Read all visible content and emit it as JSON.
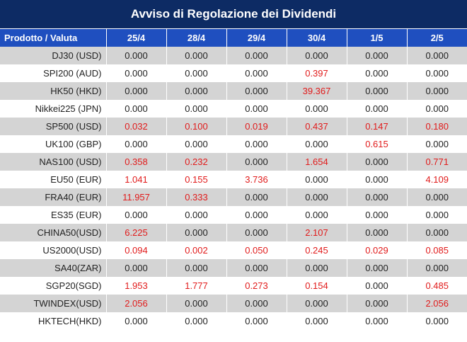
{
  "title": "Avviso di Regolazione dei Dividendi",
  "colors": {
    "header_dark": "#0d2b64",
    "header_blue": "#1f4fbf",
    "row_gray": "#d4d4d4",
    "highlight_red": "#e11b1b"
  },
  "table": {
    "headers": [
      "Prodotto / Valuta",
      "25/4",
      "28/4",
      "29/4",
      "30/4",
      "1/5",
      "2/5"
    ],
    "rows": [
      {
        "symbol": "DJ30 (USD)",
        "values": [
          "0.000",
          "0.000",
          "0.000",
          "0.000",
          "0.000",
          "0.000"
        ]
      },
      {
        "symbol": "SPI200 (AUD)",
        "values": [
          "0.000",
          "0.000",
          "0.000",
          "0.397",
          "0.000",
          "0.000"
        ]
      },
      {
        "symbol": "HK50 (HKD)",
        "values": [
          "0.000",
          "0.000",
          "0.000",
          "39.367",
          "0.000",
          "0.000"
        ]
      },
      {
        "symbol": "Nikkei225 (JPN)",
        "values": [
          "0.000",
          "0.000",
          "0.000",
          "0.000",
          "0.000",
          "0.000"
        ]
      },
      {
        "symbol": "SP500 (USD)",
        "values": [
          "0.032",
          "0.100",
          "0.019",
          "0.437",
          "0.147",
          "0.180"
        ]
      },
      {
        "symbol": "UK100 (GBP)",
        "values": [
          "0.000",
          "0.000",
          "0.000",
          "0.000",
          "0.615",
          "0.000"
        ]
      },
      {
        "symbol": "NAS100 (USD)",
        "values": [
          "0.358",
          "0.232",
          "0.000",
          "1.654",
          "0.000",
          "0.771"
        ]
      },
      {
        "symbol": "EU50 (EUR)",
        "values": [
          "1.041",
          "0.155",
          "3.736",
          "0.000",
          "0.000",
          "4.109"
        ]
      },
      {
        "symbol": "FRA40 (EUR)",
        "values": [
          "11.957",
          "0.333",
          "0.000",
          "0.000",
          "0.000",
          "0.000"
        ]
      },
      {
        "symbol": "ES35 (EUR)",
        "values": [
          "0.000",
          "0.000",
          "0.000",
          "0.000",
          "0.000",
          "0.000"
        ]
      },
      {
        "symbol": "CHINA50(USD)",
        "values": [
          "6.225",
          "0.000",
          "0.000",
          "2.107",
          "0.000",
          "0.000"
        ]
      },
      {
        "symbol": "US2000(USD)",
        "values": [
          "0.094",
          "0.002",
          "0.050",
          "0.245",
          "0.029",
          "0.085"
        ]
      },
      {
        "symbol": "SA40(ZAR)",
        "values": [
          "0.000",
          "0.000",
          "0.000",
          "0.000",
          "0.000",
          "0.000"
        ]
      },
      {
        "symbol": "SGP20(SGD)",
        "values": [
          "1.953",
          "1.777",
          "0.273",
          "0.154",
          "0.000",
          "0.485"
        ]
      },
      {
        "symbol": "TWINDEX(USD)",
        "values": [
          "2.056",
          "0.000",
          "0.000",
          "0.000",
          "0.000",
          "2.056"
        ]
      },
      {
        "symbol": "HKTECH(HKD)",
        "values": [
          "0.000",
          "0.000",
          "0.000",
          "0.000",
          "0.000",
          "0.000"
        ]
      }
    ]
  }
}
